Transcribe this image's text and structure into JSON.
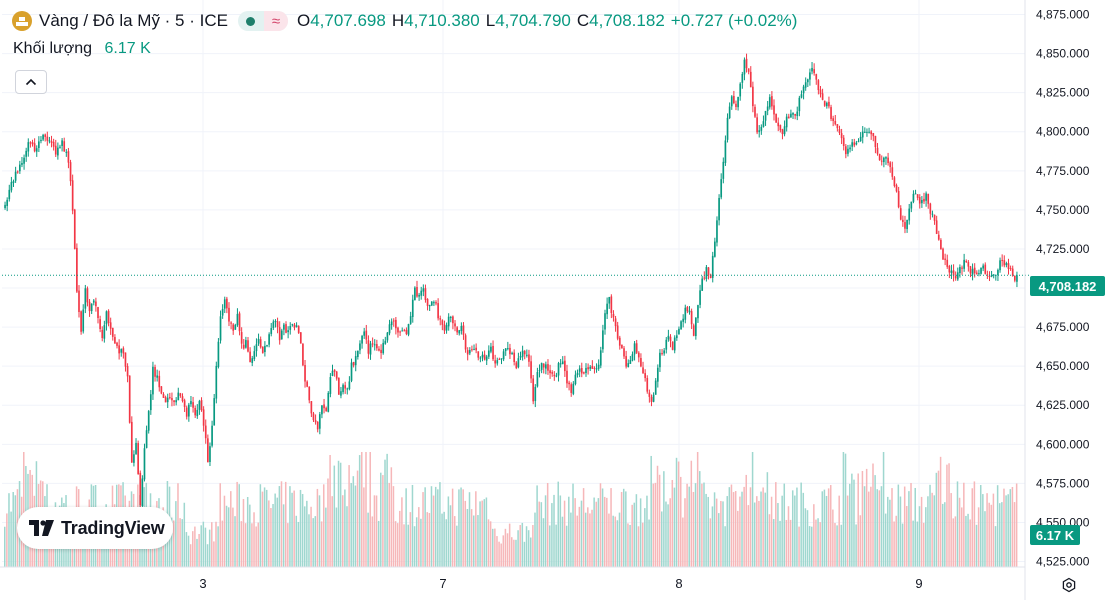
{
  "header": {
    "symbol_title": "Vàng / Đô la Mỹ · 5 · ICE",
    "ohlc": [
      {
        "key": "O",
        "value": "4,707.698"
      },
      {
        "key": "H",
        "value": "4,710.380"
      },
      {
        "key": "L",
        "value": "4,704.790"
      },
      {
        "key": "C",
        "value": "4,708.182"
      }
    ],
    "change": "+0.727 (+0.02%)",
    "volume_label": "Khối lượng",
    "volume_value": "6.17 K"
  },
  "logo": {
    "name": "TradingView"
  },
  "price_tag": "4,708.182",
  "volume_tag": "6.17 K",
  "colors": {
    "up": "#089981",
    "down": "#f23645",
    "vol_up": "#9fd7cf",
    "vol_down": "#f6b7b9",
    "accent": "#d9a12c"
  },
  "chart_data": {
    "type": "candlestick",
    "title": "Vàng / Đô la Mỹ · 5 · ICE",
    "ylim": [
      4520,
      4885
    ],
    "y_ticks": [
      "4,525.000",
      "4,550.000",
      "4,575.000",
      "4,600.000",
      "4,625.000",
      "4,650.000",
      "4,675.000",
      "4,700.000",
      "4,725.000",
      "4,750.000",
      "4,775.000",
      "4,800.000",
      "4,825.000",
      "4,850.000",
      "4,875.000"
    ],
    "y_tick_values": [
      4525,
      4550,
      4575,
      4600,
      4625,
      4650,
      4675,
      4700,
      4725,
      4750,
      4775,
      4800,
      4825,
      4850,
      4875
    ],
    "x_ticks": [
      "3",
      "7",
      "8",
      "9"
    ],
    "last_price": 4708.182,
    "close_path": [
      [
        0,
        4752
      ],
      [
        3,
        4768
      ],
      [
        8,
        4782
      ],
      [
        11,
        4793
      ],
      [
        14,
        4789
      ],
      [
        17,
        4797
      ],
      [
        20,
        4794
      ],
      [
        24,
        4787
      ],
      [
        27,
        4792
      ],
      [
        30,
        4782
      ],
      [
        32,
        4750
      ],
      [
        34,
        4700
      ],
      [
        36,
        4672
      ],
      [
        38,
        4698
      ],
      [
        40,
        4685
      ],
      [
        42,
        4692
      ],
      [
        44,
        4680
      ],
      [
        46,
        4668
      ],
      [
        48,
        4686
      ],
      [
        50,
        4674
      ],
      [
        52,
        4665
      ],
      [
        54,
        4658
      ],
      [
        56,
        4660
      ],
      [
        58,
        4642
      ],
      [
        60,
        4588
      ],
      [
        62,
        4600
      ],
      [
        64,
        4562
      ],
      [
        66,
        4598
      ],
      [
        68,
        4620
      ],
      [
        70,
        4648
      ],
      [
        72,
        4642
      ],
      [
        74,
        4632
      ],
      [
        76,
        4627
      ],
      [
        78,
        4632
      ],
      [
        80,
        4625
      ],
      [
        82,
        4632
      ],
      [
        84,
        4630
      ],
      [
        86,
        4618
      ],
      [
        88,
        4628
      ],
      [
        90,
        4620
      ],
      [
        92,
        4628
      ],
      [
        94,
        4613
      ],
      [
        96,
        4590
      ],
      [
        98,
        4610
      ],
      [
        100,
        4648
      ],
      [
        102,
        4680
      ],
      [
        104,
        4694
      ],
      [
        106,
        4680
      ],
      [
        108,
        4672
      ],
      [
        110,
        4682
      ],
      [
        112,
        4662
      ],
      [
        114,
        4665
      ],
      [
        116,
        4652
      ],
      [
        118,
        4660
      ],
      [
        120,
        4665
      ],
      [
        122,
        4658
      ],
      [
        124,
        4665
      ],
      [
        126,
        4675
      ],
      [
        128,
        4678
      ],
      [
        130,
        4668
      ],
      [
        132,
        4675
      ],
      [
        134,
        4672
      ],
      [
        136,
        4676
      ],
      [
        138,
        4678
      ],
      [
        140,
        4664
      ],
      [
        142,
        4642
      ],
      [
        144,
        4628
      ],
      [
        146,
        4615
      ],
      [
        148,
        4612
      ],
      [
        150,
        4626
      ],
      [
        152,
        4622
      ],
      [
        154,
        4643
      ],
      [
        156,
        4648
      ],
      [
        158,
        4632
      ],
      [
        160,
        4636
      ],
      [
        162,
        4634
      ],
      [
        164,
        4650
      ],
      [
        166,
        4655
      ],
      [
        168,
        4666
      ],
      [
        170,
        4672
      ],
      [
        172,
        4660
      ],
      [
        174,
        4665
      ],
      [
        176,
        4660
      ],
      [
        178,
        4658
      ],
      [
        180,
        4668
      ],
      [
        182,
        4675
      ],
      [
        184,
        4680
      ],
      [
        186,
        4670
      ],
      [
        188,
        4674
      ],
      [
        190,
        4670
      ],
      [
        192,
        4683
      ],
      [
        194,
        4698
      ],
      [
        196,
        4694
      ],
      [
        198,
        4698
      ],
      [
        200,
        4690
      ],
      [
        202,
        4692
      ],
      [
        204,
        4688
      ],
      [
        206,
        4678
      ],
      [
        208,
        4675
      ],
      [
        210,
        4682
      ],
      [
        212,
        4680
      ],
      [
        214,
        4672
      ],
      [
        216,
        4676
      ],
      [
        218,
        4662
      ],
      [
        220,
        4658
      ],
      [
        222,
        4660
      ],
      [
        224,
        4656
      ],
      [
        226,
        4658
      ],
      [
        228,
        4655
      ],
      [
        230,
        4660
      ],
      [
        232,
        4652
      ],
      [
        234,
        4655
      ],
      [
        236,
        4658
      ],
      [
        238,
        4662
      ],
      [
        240,
        4658
      ],
      [
        242,
        4650
      ],
      [
        244,
        4656
      ],
      [
        246,
        4660
      ],
      [
        248,
        4652
      ],
      [
        250,
        4630
      ],
      [
        252,
        4645
      ],
      [
        254,
        4650
      ],
      [
        256,
        4652
      ],
      [
        258,
        4647
      ],
      [
        260,
        4642
      ],
      [
        262,
        4650
      ],
      [
        264,
        4654
      ],
      [
        266,
        4640
      ],
      [
        268,
        4634
      ],
      [
        270,
        4645
      ],
      [
        272,
        4650
      ],
      [
        274,
        4643
      ],
      [
        276,
        4650
      ],
      [
        278,
        4648
      ],
      [
        280,
        4648
      ],
      [
        282,
        4658
      ],
      [
        284,
        4685
      ],
      [
        286,
        4692
      ],
      [
        288,
        4680
      ],
      [
        290,
        4668
      ],
      [
        292,
        4660
      ],
      [
        294,
        4648
      ],
      [
        296,
        4652
      ],
      [
        298,
        4665
      ],
      [
        300,
        4656
      ],
      [
        302,
        4648
      ],
      [
        304,
        4632
      ],
      [
        306,
        4625
      ],
      [
        308,
        4640
      ],
      [
        310,
        4657
      ],
      [
        312,
        4662
      ],
      [
        314,
        4667
      ],
      [
        316,
        4662
      ],
      [
        318,
        4670
      ],
      [
        320,
        4678
      ],
      [
        322,
        4685
      ],
      [
        324,
        4688
      ],
      [
        326,
        4670
      ],
      [
        328,
        4690
      ],
      [
        330,
        4705
      ],
      [
        332,
        4712
      ],
      [
        334,
        4708
      ],
      [
        336,
        4730
      ],
      [
        338,
        4760
      ],
      [
        340,
        4782
      ],
      [
        342,
        4808
      ],
      [
        344,
        4822
      ],
      [
        346,
        4817
      ],
      [
        348,
        4830
      ],
      [
        350,
        4848
      ],
      [
        352,
        4838
      ],
      [
        354,
        4818
      ],
      [
        356,
        4800
      ],
      [
        358,
        4805
      ],
      [
        360,
        4812
      ],
      [
        362,
        4820
      ],
      [
        364,
        4810
      ],
      [
        366,
        4805
      ],
      [
        368,
        4800
      ],
      [
        370,
        4808
      ],
      [
        372,
        4812
      ],
      [
        374,
        4810
      ],
      [
        376,
        4820
      ],
      [
        378,
        4830
      ],
      [
        380,
        4835
      ],
      [
        382,
        4840
      ],
      [
        384,
        4832
      ],
      [
        386,
        4826
      ],
      [
        388,
        4818
      ],
      [
        390,
        4815
      ],
      [
        392,
        4805
      ],
      [
        394,
        4800
      ],
      [
        396,
        4795
      ],
      [
        398,
        4785
      ],
      [
        400,
        4790
      ],
      [
        402,
        4793
      ],
      [
        404,
        4795
      ],
      [
        406,
        4800
      ],
      [
        408,
        4802
      ],
      [
        410,
        4800
      ],
      [
        412,
        4792
      ],
      [
        414,
        4780
      ],
      [
        416,
        4785
      ],
      [
        418,
        4778
      ],
      [
        420,
        4772
      ],
      [
        422,
        4762
      ],
      [
        424,
        4745
      ],
      [
        426,
        4738
      ],
      [
        428,
        4752
      ],
      [
        430,
        4760
      ],
      [
        432,
        4758
      ],
      [
        434,
        4755
      ],
      [
        436,
        4760
      ],
      [
        438,
        4750
      ],
      [
        440,
        4742
      ],
      [
        442,
        4730
      ],
      [
        444,
        4720
      ],
      [
        446,
        4712
      ],
      [
        448,
        4710
      ],
      [
        450,
        4706
      ],
      [
        452,
        4712
      ],
      [
        454,
        4717
      ],
      [
        456,
        4712
      ],
      [
        458,
        4710
      ],
      [
        460,
        4707
      ],
      [
        462,
        4714
      ],
      [
        464,
        4710
      ],
      [
        466,
        4705
      ],
      [
        468,
        4708
      ],
      [
        470,
        4713
      ],
      [
        472,
        4718
      ],
      [
        474,
        4716
      ],
      [
        476,
        4711
      ],
      [
        478,
        4707
      ]
    ]
  }
}
